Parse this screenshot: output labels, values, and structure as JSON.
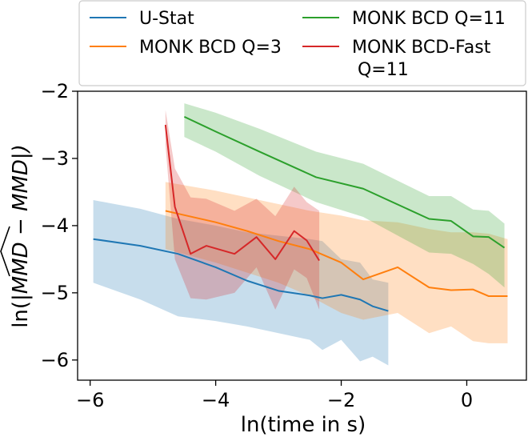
{
  "chart_data": {
    "type": "line",
    "title": "",
    "xlabel": "ln(time in s)",
    "ylabel": "ln(|MMD^ − MMD|)",
    "ylabel_parts": {
      "prefix": "ln(|",
      "hat_term": "MMD",
      "suffix": " − MMD|)"
    },
    "xlim": [
      -6.2,
      0.95
    ],
    "ylim": [
      -6.3,
      -2.0
    ],
    "x_ticks": [
      -6,
      -4,
      -2,
      0
    ],
    "x_tick_labels": [
      "−6",
      "−4",
      "−2",
      "0"
    ],
    "y_ticks": [
      -2,
      -3,
      -4,
      -5,
      -6
    ],
    "y_tick_labels": [
      "−2",
      "−3",
      "−4",
      "−5",
      "−6"
    ],
    "grid": false,
    "legend": {
      "placement": "top",
      "columns": 2
    },
    "series": [
      {
        "name": "U-Stat",
        "legend_lines": [
          "U-Stat"
        ],
        "color": "#1f77b4",
        "x": [
          -5.95,
          -5.2,
          -4.6,
          -4.0,
          -3.5,
          -3.0,
          -2.5,
          -2.3,
          -2.0,
          -1.7,
          -1.5,
          -1.25
        ],
        "y": [
          -4.2,
          -4.3,
          -4.42,
          -4.62,
          -4.82,
          -4.97,
          -5.04,
          -5.08,
          -5.03,
          -5.1,
          -5.2,
          -5.27
        ],
        "upper": [
          -3.62,
          -3.75,
          -3.9,
          -4.0,
          -4.1,
          -4.15,
          -4.2,
          -4.23,
          -4.5,
          -4.55,
          -4.8,
          -4.85
        ],
        "lower": [
          -4.85,
          -5.1,
          -5.35,
          -5.42,
          -5.5,
          -5.6,
          -5.7,
          -5.85,
          -5.7,
          -6.02,
          -5.95,
          -6.08
        ]
      },
      {
        "name": "MONK BCD Q=3",
        "legend_lines": [
          "MONK BCD Q=3"
        ],
        "color": "#ff7f0e",
        "x": [
          -4.8,
          -4.0,
          -3.5,
          -3.0,
          -2.5,
          -2.0,
          -1.65,
          -1.1,
          -0.6,
          -0.25,
          0.1,
          0.35,
          0.65
        ],
        "y": [
          -3.78,
          -3.95,
          -4.08,
          -4.23,
          -4.35,
          -4.55,
          -4.8,
          -4.62,
          -4.92,
          -4.96,
          -4.95,
          -5.05,
          -5.05
        ],
        "upper": [
          -3.35,
          -3.48,
          -3.58,
          -3.68,
          -3.78,
          -3.85,
          -3.92,
          -3.95,
          -4.05,
          -4.1,
          -4.1,
          -4.12,
          -4.2
        ],
        "lower": [
          -4.35,
          -4.55,
          -4.7,
          -4.85,
          -5.05,
          -5.3,
          -5.4,
          -5.3,
          -5.6,
          -5.5,
          -5.72,
          -5.75,
          -5.75
        ]
      },
      {
        "name": "MONK BCD Q=11",
        "legend_lines": [
          "MONK BCD Q=11"
        ],
        "color": "#2ca02c",
        "x": [
          -4.5,
          -4.0,
          -3.3,
          -2.4,
          -1.65,
          -0.6,
          -0.25,
          0.1,
          0.35,
          0.6
        ],
        "y": [
          -2.38,
          -2.6,
          -2.9,
          -3.28,
          -3.45,
          -3.9,
          -3.93,
          -4.16,
          -4.17,
          -4.33
        ],
        "upper": [
          -2.18,
          -2.32,
          -2.56,
          -2.9,
          -3.08,
          -3.56,
          -3.56,
          -3.76,
          -3.78,
          -3.97
        ],
        "lower": [
          -2.68,
          -2.9,
          -3.26,
          -3.65,
          -3.87,
          -4.4,
          -4.42,
          -4.57,
          -4.72,
          -4.92
        ]
      },
      {
        "name": "MONK BCD-Fast Q=11",
        "legend_lines": [
          "MONK BCD-Fast",
          " Q=11"
        ],
        "color": "#d62728",
        "x": [
          -4.8,
          -4.65,
          -4.4,
          -4.15,
          -3.7,
          -3.35,
          -3.05,
          -2.75,
          -2.55,
          -2.35
        ],
        "y": [
          -2.5,
          -3.72,
          -4.42,
          -4.3,
          -4.42,
          -4.17,
          -4.5,
          -4.08,
          -4.22,
          -4.52
        ],
        "upper": [
          -2.28,
          -3.15,
          -3.58,
          -3.6,
          -3.78,
          -3.6,
          -3.86,
          -3.42,
          -3.65,
          -3.78
        ],
        "lower": [
          -2.8,
          -4.5,
          -5.08,
          -5.1,
          -5.0,
          -4.62,
          -5.25,
          -4.65,
          -4.78,
          -5.25
        ]
      }
    ]
  }
}
